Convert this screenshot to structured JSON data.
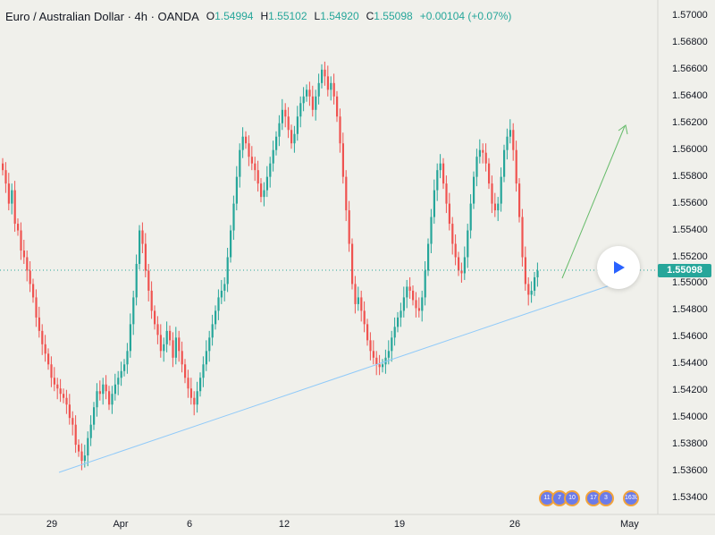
{
  "header": {
    "symbol": "Euro / Australian Dollar · 4h · OANDA",
    "open_label": "O",
    "open": "1.54994",
    "high_label": "H",
    "high": "1.55102",
    "low_label": "L",
    "low": "1.54920",
    "close_label": "C",
    "close": "1.55098",
    "change": "+0.00104 (+0.07%)"
  },
  "last_price": "1.55098",
  "colors": {
    "up": "#26a69a",
    "down": "#ef5350",
    "trendline": "#90caf9",
    "arrow": "#66bb6a",
    "background": "#f0f0eb"
  },
  "chart_data": {
    "type": "candlestick",
    "ylim": [
      1.5328,
      1.5712
    ],
    "y_ticks": [
      "1.57000",
      "1.56800",
      "1.56600",
      "1.56400",
      "1.56200",
      "1.56000",
      "1.55800",
      "1.55600",
      "1.55400",
      "1.55200",
      "1.55000",
      "1.54800",
      "1.54600",
      "1.54400",
      "1.54200",
      "1.54000",
      "1.53800",
      "1.53600",
      "1.53400"
    ],
    "x_ticks": [
      "29",
      "Apr",
      "6",
      "12",
      "19",
      "26",
      "May"
    ],
    "close": [
      1.5585,
      1.5575,
      1.556,
      1.557,
      1.5545,
      1.554,
      1.5525,
      1.552,
      1.551,
      1.55,
      1.549,
      1.5475,
      1.5465,
      1.5455,
      1.5448,
      1.544,
      1.543,
      1.5425,
      1.5422,
      1.5418,
      1.5415,
      1.541,
      1.54,
      1.5395,
      1.538,
      1.5375,
      1.5368,
      1.5372,
      1.5385,
      1.5395,
      1.5408,
      1.542,
      1.5418,
      1.5425,
      1.542,
      1.541,
      1.5418,
      1.5425,
      1.543,
      1.5435,
      1.544,
      1.545,
      1.547,
      1.549,
      1.5515,
      1.554,
      1.553,
      1.551,
      1.5495,
      1.548,
      1.547,
      1.5462,
      1.545,
      1.5455,
      1.5465,
      1.5458,
      1.5445,
      1.546,
      1.545,
      1.544,
      1.543,
      1.5422,
      1.5415,
      1.541,
      1.542,
      1.543,
      1.544,
      1.545,
      1.546,
      1.547,
      1.548,
      1.549,
      1.5495,
      1.55,
      1.552,
      1.554,
      1.556,
      1.558,
      1.56,
      1.561,
      1.5605,
      1.5595,
      1.559,
      1.5585,
      1.5575,
      1.5565,
      1.557,
      1.558,
      1.559,
      1.56,
      1.561,
      1.562,
      1.563,
      1.5625,
      1.5615,
      1.5605,
      1.5612,
      1.5625,
      1.5635,
      1.564,
      1.5645,
      1.564,
      1.563,
      1.564,
      1.565,
      1.566,
      1.5655,
      1.5645,
      1.565,
      1.564,
      1.5625,
      1.5605,
      1.558,
      1.5555,
      1.553,
      1.55,
      1.5485,
      1.549,
      1.548,
      1.547,
      1.5458,
      1.545,
      1.5445,
      1.544,
      1.5438,
      1.544,
      1.5445,
      1.545,
      1.546,
      1.5468,
      1.5475,
      1.548,
      1.549,
      1.5498,
      1.5495,
      1.5488,
      1.5482,
      1.548,
      1.549,
      1.551,
      1.553,
      1.555,
      1.557,
      1.5585,
      1.559,
      1.5575,
      1.556,
      1.5545,
      1.553,
      1.552,
      1.551,
      1.5508,
      1.552,
      1.554,
      1.556,
      1.558,
      1.5595,
      1.56,
      1.5598,
      1.559,
      1.5575,
      1.556,
      1.5555,
      1.556,
      1.558,
      1.56,
      1.561,
      1.5615,
      1.56,
      1.5575,
      1.555,
      1.552,
      1.55,
      1.5492,
      1.5495,
      1.5505,
      1.551
    ],
    "annotations": [
      "ascending trendline",
      "projection arrow up"
    ]
  },
  "events": [
    {
      "label": "11"
    },
    {
      "label": "7"
    },
    {
      "label": "10"
    },
    {
      "label": "17"
    },
    {
      "label": "3"
    },
    {
      "label": "1630"
    }
  ]
}
